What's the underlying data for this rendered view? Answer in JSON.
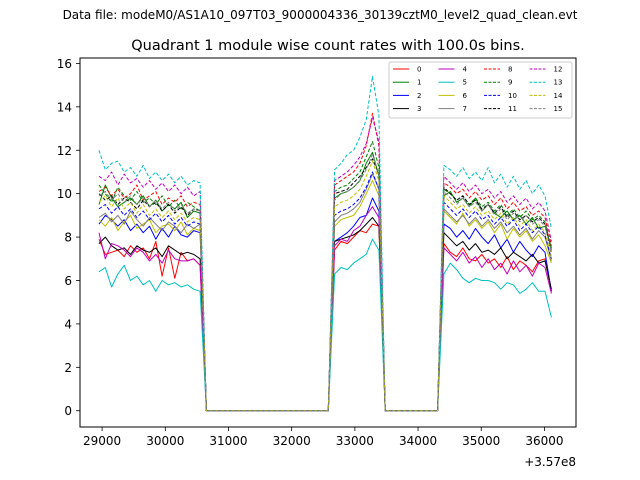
{
  "figure": {
    "suptitle": "Data file: modeM0/AS1A10_097T03_9000004336_30139cztM0_level2_quad_clean.evt"
  },
  "chart_data": {
    "type": "line",
    "title": "Quadrant 1 module wise count rates with 100.0s bins.",
    "xlabel": "",
    "ylabel": "",
    "x_offset_label": "+3.57e8",
    "xlim": [
      28650,
      36500
    ],
    "ylim": [
      -0.75,
      16.25
    ],
    "xticks": [
      29000,
      30000,
      31000,
      32000,
      33000,
      34000,
      35000,
      36000
    ],
    "xtick_labels": [
      "29000",
      "30000",
      "31000",
      "32000",
      "33000",
      "34000",
      "35000",
      "36000"
    ],
    "yticks": [
      0,
      2,
      4,
      6,
      8,
      10,
      12,
      14,
      16
    ],
    "ytick_labels": [
      "0",
      "2",
      "4",
      "6",
      "8",
      "10",
      "12",
      "14",
      "16"
    ],
    "grid": false,
    "legend": "top-right, 4 columns",
    "segments": [
      {
        "x0": 28950,
        "n": 17
      },
      {
        "x0": 32680,
        "n": 8
      },
      {
        "x0": 34410,
        "n": 18
      }
    ],
    "gaps": [
      {
        "x0": 30650,
        "x1": 32580
      },
      {
        "x0": 33480,
        "x1": 34310
      }
    ],
    "x_step": 100,
    "series": [
      {
        "name": "0",
        "color": "#ff0000",
        "dash": false,
        "s1": [
          7.9,
          7.2,
          7.3,
          7.4,
          7.1,
          7.6,
          7.3,
          7.5,
          7.0,
          7.8,
          6.2,
          7.5,
          6.1,
          7.3,
          6.9,
          7.0,
          6.7
        ],
        "s2": [
          7.4,
          7.8,
          7.7,
          8.0,
          8.3,
          8.2,
          8.6,
          8.5
        ],
        "s3": [
          7.7,
          7.3,
          7.1,
          7.5,
          7.0,
          6.9,
          7.2,
          6.8,
          7.0,
          6.6,
          7.1,
          6.5,
          6.9,
          6.7,
          6.4,
          6.9,
          7.0,
          5.5
        ]
      },
      {
        "name": "1",
        "color": "#008000",
        "dash": false,
        "s1": [
          9.5,
          10.4,
          9.8,
          9.4,
          9.6,
          9.8,
          9.5,
          9.9,
          9.4,
          9.7,
          9.2,
          9.5,
          9.3,
          9.6,
          8.9,
          9.2,
          9.1
        ],
        "s2": [
          9.8,
          10.0,
          10.1,
          10.3,
          10.6,
          11.4,
          11.9,
          10.8
        ],
        "s3": [
          9.9,
          10.1,
          9.6,
          9.8,
          9.4,
          9.8,
          9.2,
          9.5,
          9.1,
          8.9,
          9.2,
          8.8,
          9.0,
          8.6,
          8.9,
          8.4,
          8.5,
          7.5
        ]
      },
      {
        "name": "2",
        "color": "#0000ff",
        "dash": false,
        "s1": [
          8.6,
          9.0,
          8.8,
          8.5,
          8.8,
          8.3,
          8.6,
          8.2,
          8.5,
          7.9,
          8.4,
          8.0,
          8.5,
          8.1,
          8.0,
          8.3,
          8.2
        ],
        "s2": [
          7.8,
          8.0,
          8.2,
          8.5,
          8.9,
          9.0,
          9.8,
          9.2
        ],
        "s3": [
          8.6,
          8.4,
          8.0,
          8.3,
          7.9,
          8.4,
          8.0,
          7.7,
          8.1,
          7.5,
          7.9,
          7.3,
          7.8,
          7.4,
          7.1,
          7.6,
          7.3,
          5.5
        ]
      },
      {
        "name": "3",
        "color": "#000000",
        "dash": false,
        "s1": [
          7.7,
          8.0,
          7.6,
          7.4,
          7.5,
          7.2,
          7.6,
          7.4,
          7.3,
          7.5,
          7.1,
          7.6,
          7.4,
          7.2,
          7.3,
          7.2,
          7.0
        ],
        "s2": [
          7.8,
          7.9,
          8.0,
          8.1,
          8.3,
          8.6,
          8.9,
          8.5
        ],
        "s3": [
          8.2,
          7.9,
          7.6,
          7.8,
          7.4,
          7.7,
          7.3,
          7.4,
          7.2,
          7.5,
          7.0,
          7.3,
          7.1,
          6.9,
          7.2,
          6.8,
          6.9,
          5.6
        ]
      },
      {
        "name": "4",
        "color": "#bf00bf",
        "dash": false,
        "s1": [
          8.2,
          7.0,
          7.7,
          7.6,
          7.4,
          7.1,
          7.5,
          7.3,
          6.9,
          7.2,
          6.8,
          7.4,
          7.0,
          6.9,
          6.9,
          7.0,
          6.7
        ],
        "s2": [
          7.6,
          7.9,
          7.8,
          8.3,
          8.5,
          9.0,
          9.4,
          8.9
        ],
        "s3": [
          7.5,
          7.2,
          6.9,
          7.3,
          6.8,
          7.1,
          6.6,
          7.0,
          6.5,
          6.8,
          6.3,
          6.9,
          6.4,
          6.7,
          6.2,
          6.8,
          6.6,
          5.4
        ]
      },
      {
        "name": "5",
        "color": "#00bfbf",
        "dash": false,
        "s1": [
          6.4,
          6.6,
          5.7,
          6.3,
          6.7,
          6.0,
          6.2,
          5.8,
          6.0,
          5.5,
          6.0,
          5.8,
          5.9,
          5.7,
          5.8,
          5.6,
          5.5
        ],
        "s2": [
          6.3,
          6.6,
          6.5,
          6.8,
          7.0,
          7.2,
          7.9,
          7.4
        ],
        "s3": [
          6.3,
          6.8,
          6.5,
          6.1,
          5.9,
          6.1,
          6.0,
          6.0,
          5.9,
          5.6,
          5.9,
          5.8,
          5.4,
          5.6,
          5.9,
          5.5,
          5.5,
          4.3
        ]
      },
      {
        "name": "6",
        "color": "#bfbf00",
        "dash": false,
        "s1": [
          8.8,
          8.5,
          8.9,
          8.3,
          8.7,
          9.0,
          8.4,
          8.6,
          8.8,
          8.2,
          8.5,
          8.6,
          8.3,
          8.7,
          8.1,
          8.4,
          8.3
        ],
        "s2": [
          8.5,
          8.8,
          8.9,
          9.0,
          9.4,
          10.0,
          10.6,
          9.9
        ],
        "s3": [
          9.2,
          8.9,
          8.6,
          9.1,
          8.5,
          8.8,
          8.4,
          8.7,
          8.2,
          8.6,
          7.9,
          8.4,
          8.0,
          8.3,
          7.8,
          8.1,
          7.6,
          6.8
        ]
      },
      {
        "name": "7",
        "color": "#808080",
        "dash": false,
        "s1": [
          8.9,
          9.1,
          8.7,
          9.0,
          8.6,
          9.2,
          8.8,
          8.5,
          8.9,
          8.6,
          8.3,
          8.7,
          8.5,
          8.2,
          8.6,
          8.4,
          8.6
        ],
        "s2": [
          8.7,
          9.0,
          9.1,
          9.3,
          9.6,
          10.2,
          10.9,
          10.2
        ],
        "s3": [
          9.3,
          9.0,
          8.7,
          9.0,
          8.6,
          8.9,
          8.5,
          8.8,
          8.4,
          8.7,
          8.2,
          8.5,
          8.1,
          8.4,
          7.9,
          8.3,
          8.0,
          6.9
        ]
      },
      {
        "name": "8",
        "color": "#ff0000",
        "dash": true,
        "s1": [
          10.1,
          10.3,
          9.9,
          10.2,
          9.8,
          10.0,
          10.4,
          9.7,
          9.9,
          10.1,
          9.5,
          9.8,
          9.6,
          9.9,
          9.4,
          9.6,
          9.5
        ],
        "s2": [
          10.4,
          10.6,
          10.8,
          11.0,
          11.4,
          12.2,
          13.7,
          12.2
        ],
        "s3": [
          10.5,
          10.3,
          10.0,
          10.2,
          9.8,
          10.1,
          9.7,
          9.9,
          9.5,
          9.8,
          9.3,
          9.6,
          9.2,
          9.4,
          9.0,
          9.2,
          8.9,
          7.6
        ]
      },
      {
        "name": "9",
        "color": "#008000",
        "dash": true,
        "s1": [
          10.4,
          10.0,
          9.6,
          10.3,
          9.9,
          9.7,
          10.1,
          9.6,
          9.8,
          9.5,
          9.9,
          9.4,
          9.7,
          9.3,
          9.6,
          9.4,
          9.2
        ],
        "s2": [
          10.1,
          10.3,
          10.4,
          10.7,
          11.0,
          11.7,
          12.4,
          11.2
        ],
        "s3": [
          10.2,
          10.0,
          9.7,
          9.9,
          9.5,
          9.8,
          9.4,
          9.6,
          9.2,
          9.5,
          9.0,
          9.3,
          8.9,
          9.2,
          8.8,
          9.0,
          8.7,
          7.4
        ]
      },
      {
        "name": "10",
        "color": "#0000ff",
        "dash": true,
        "s1": [
          9.3,
          9.5,
          9.1,
          9.4,
          9.0,
          9.3,
          8.9,
          9.2,
          8.8,
          9.1,
          8.7,
          9.0,
          8.6,
          8.9,
          8.5,
          8.7,
          8.6
        ],
        "s2": [
          9.0,
          9.2,
          9.3,
          9.5,
          9.8,
          10.3,
          11.0,
          10.2
        ],
        "s3": [
          9.6,
          9.3,
          9.0,
          9.3,
          8.9,
          9.2,
          8.8,
          9.0,
          8.6,
          8.9,
          8.5,
          8.8,
          8.3,
          8.6,
          8.2,
          8.5,
          8.1,
          7.0
        ]
      },
      {
        "name": "11",
        "color": "#000000",
        "dash": true,
        "s1": [
          10.0,
          9.7,
          9.9,
          9.5,
          9.8,
          9.6,
          9.3,
          9.7,
          9.4,
          9.6,
          9.2,
          9.5,
          9.1,
          9.4,
          9.0,
          9.3,
          9.2
        ],
        "s2": [
          10.0,
          10.1,
          10.2,
          10.5,
          10.8,
          11.2,
          11.6,
          10.9
        ],
        "s3": [
          10.3,
          10.0,
          9.7,
          9.9,
          9.5,
          9.7,
          9.3,
          9.5,
          9.1,
          9.4,
          8.9,
          9.2,
          8.8,
          9.0,
          8.7,
          8.9,
          8.6,
          7.3
        ]
      },
      {
        "name": "12",
        "color": "#bf00bf",
        "dash": true,
        "s1": [
          10.8,
          10.6,
          11.0,
          10.4,
          10.9,
          10.5,
          10.7,
          10.3,
          10.6,
          10.2,
          10.5,
          10.1,
          10.4,
          10.0,
          10.3,
          9.9,
          10.1
        ],
        "s2": [
          10.6,
          10.8,
          11.0,
          11.3,
          11.7,
          12.3,
          13.5,
          12.4
        ],
        "s3": [
          10.8,
          10.5,
          10.2,
          10.5,
          10.1,
          10.4,
          10.0,
          10.2,
          9.8,
          10.1,
          9.6,
          9.9,
          9.5,
          9.8,
          9.3,
          9.6,
          9.2,
          7.8
        ]
      },
      {
        "name": "13",
        "color": "#00bfbf",
        "dash": true,
        "s1": [
          12.0,
          11.1,
          11.4,
          11.5,
          11.0,
          11.2,
          10.8,
          11.3,
          10.7,
          11.0,
          10.6,
          10.9,
          10.5,
          10.8,
          10.4,
          10.6,
          10.5
        ],
        "s2": [
          11.1,
          11.4,
          11.8,
          12.0,
          12.6,
          13.4,
          15.4,
          13.6
        ],
        "s3": [
          11.3,
          11.1,
          10.8,
          11.2,
          10.7,
          11.0,
          10.6,
          11.2,
          10.5,
          10.9,
          10.3,
          10.8,
          10.2,
          10.6,
          10.0,
          10.4,
          9.9,
          8.4
        ]
      },
      {
        "name": "14",
        "color": "#bfbf00",
        "dash": true,
        "s1": [
          9.6,
          9.9,
          9.4,
          9.8,
          9.3,
          9.6,
          9.1,
          9.5,
          9.0,
          9.3,
          8.9,
          9.2,
          8.8,
          9.1,
          8.7,
          8.9,
          8.8
        ],
        "s2": [
          9.4,
          9.6,
          9.7,
          9.9,
          10.2,
          10.8,
          11.5,
          10.6
        ],
        "s3": [
          9.9,
          9.6,
          9.3,
          9.5,
          9.1,
          9.4,
          9.0,
          9.2,
          8.8,
          9.1,
          8.6,
          8.9,
          8.5,
          8.8,
          8.3,
          8.6,
          8.2,
          7.1
        ]
      },
      {
        "name": "15",
        "color": "#808080",
        "dash": true,
        "s1": [
          9.9,
          10.1,
          9.7,
          10.0,
          9.6,
          9.9,
          9.5,
          9.8,
          9.4,
          9.7,
          9.3,
          9.6,
          9.2,
          9.5,
          9.1,
          9.3,
          9.2
        ],
        "s2": [
          9.7,
          10.0,
          10.1,
          10.3,
          10.6,
          11.1,
          11.8,
          10.9
        ],
        "s3": [
          10.1,
          9.8,
          9.5,
          9.8,
          9.4,
          9.6,
          9.2,
          9.5,
          9.0,
          9.3,
          8.8,
          9.1,
          8.7,
          9.0,
          8.6,
          8.8,
          8.5,
          7.3
        ]
      }
    ]
  }
}
